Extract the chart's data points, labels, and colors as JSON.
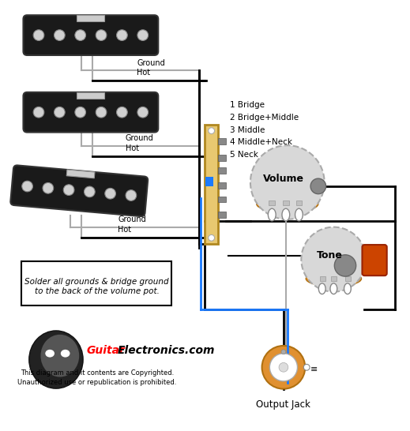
{
  "bg_color": "#ffffff",
  "pickup_bg": "#1a1a1a",
  "pole_color": "#d0d0d0",
  "wire_black": "#000000",
  "wire_blue": "#1a7aff",
  "wire_gray": "#aaaaaa",
  "pot_body": "#d8d8d8",
  "pot_base": "#e09030",
  "pot_lug": "#c0c0c0",
  "cap_color": "#cc4400",
  "switch_body": "#e8c870",
  "switch_side": "#b08820",
  "switch_terminal": "#888888",
  "note_text": "Solder all grounds & bridge ground\nto the back of the volume pot.",
  "switch_labels": [
    "1 Bridge",
    "2 Bridge+Middle",
    "3 Middle",
    "4 Middle+Neck",
    "5 Neck"
  ],
  "volume_label": "Volume",
  "tone_label": "Tone",
  "output_label": "Output Jack",
  "copyright1": "This diagram and it contents are Copyrighted.",
  "copyright2": "Unauthorized use or republication is prohibited.",
  "brand_guitar": "Guitar",
  "brand_rest": "Electronics.com"
}
